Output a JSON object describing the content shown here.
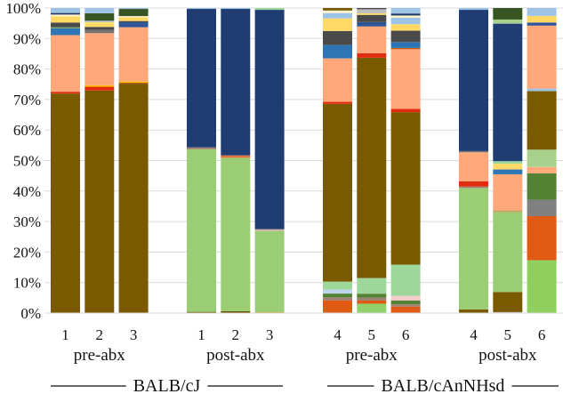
{
  "chart_data": {
    "type": "bar",
    "stacked": true,
    "normalized": true,
    "title": "",
    "xlabel": "",
    "ylabel": "",
    "ylim": [
      0,
      100
    ],
    "yticks": [
      "0%",
      "10%",
      "20%",
      "30%",
      "40%",
      "50%",
      "60%",
      "70%",
      "80%",
      "90%",
      "100%"
    ],
    "grid": true,
    "legend": "none",
    "strains": [
      {
        "label": "BALB/cJ",
        "groups": [
          0,
          1
        ]
      },
      {
        "label": "BALB/cAnNHsd",
        "groups": [
          2,
          3
        ]
      }
    ],
    "groups": [
      {
        "label": "pre-abx",
        "bars": [
          {
            "label": "1",
            "segments": [
              {
                "color": "#7a5a00",
                "value": 70.5
              },
              {
                "color": "#e02b0f",
                "value": 0.6
              },
              {
                "color": "#ffa87a",
                "value": 18.2
              },
              {
                "color": "#2e75b6",
                "value": 2.2
              },
              {
                "color": "#70ad47",
                "value": 0.3
              },
              {
                "color": "#4a4a4a",
                "value": 1.5
              },
              {
                "color": "#ffd966",
                "value": 2.0
              },
              {
                "color": "#fff2cc",
                "value": 0.6
              },
              {
                "color": "#1f3864",
                "value": 0.5
              },
              {
                "color": "#9dc3e6",
                "value": 1.6
              }
            ]
          },
          {
            "label": "2",
            "segments": [
              {
                "color": "#7a5a00",
                "value": 71.8
              },
              {
                "color": "#e02b0f",
                "value": 1.2
              },
              {
                "color": "#ffc000",
                "value": 0.5
              },
              {
                "color": "#ffa87a",
                "value": 16.8
              },
              {
                "color": "#767171",
                "value": 1.0
              },
              {
                "color": "#4a4a4a",
                "value": 1.0
              },
              {
                "color": "#ffd966",
                "value": 1.6
              },
              {
                "color": "#9dc3e6",
                "value": 0.4
              },
              {
                "color": "#375623",
                "value": 2.4
              },
              {
                "color": "#9dc3e6",
                "value": 1.7
              }
            ]
          },
          {
            "label": "3",
            "segments": [
              {
                "color": "#7a5a00",
                "value": 74.0
              },
              {
                "color": "#c55a11",
                "value": 0.3
              },
              {
                "color": "#ffc000",
                "value": 0.4
              },
              {
                "color": "#ffa87a",
                "value": 17.5
              },
              {
                "color": "#2f5597",
                "value": 1.6
              },
              {
                "color": "#4a4a4a",
                "value": 0.4
              },
              {
                "color": "#ffd966",
                "value": 1.2
              },
              {
                "color": "#fff2cc",
                "value": 0.4
              },
              {
                "color": "#375623",
                "value": 2.3
              },
              {
                "color": "#9dc3e6",
                "value": 0.3
              }
            ]
          }
        ]
      },
      {
        "label": "post-abx",
        "bars": [
          {
            "label": "1",
            "segments": [
              {
                "color": "#6b5000",
                "value": 0.4
              },
              {
                "color": "#9acd74",
                "value": 53.3
              },
              {
                "color": "#a08070",
                "value": 0.6
              },
              {
                "color": "#1f3d73",
                "value": 45.4
              },
              {
                "color": "#9dc3e6",
                "value": 0.3
              }
            ]
          },
          {
            "label": "2",
            "segments": [
              {
                "color": "#6b5000",
                "value": 0.6
              },
              {
                "color": "#9acd74",
                "value": 50.3
              },
              {
                "color": "#e2703a",
                "value": 0.8
              },
              {
                "color": "#1f3d73",
                "value": 48.0
              },
              {
                "color": "#9dc3e6",
                "value": 0.3
              }
            ]
          },
          {
            "label": "3",
            "segments": [
              {
                "color": "#c9a227",
                "value": 0.3
              },
              {
                "color": "#9acd74",
                "value": 26.6
              },
              {
                "color": "#c9b0a0",
                "value": 0.6
              },
              {
                "color": "#1f3d73",
                "value": 71.9
              },
              {
                "color": "#9dd79a",
                "value": 0.6
              }
            ]
          }
        ]
      },
      {
        "label": "pre-abx",
        "bars": [
          {
            "label": "4",
            "segments": [
              {
                "color": "#e05a14",
                "value": 4.0
              },
              {
                "color": "#a08070",
                "value": 1.0
              },
              {
                "color": "#548235",
                "value": 1.2
              },
              {
                "color": "#bdd7ee",
                "value": 1.3
              },
              {
                "color": "#9dd79a",
                "value": 2.5
              },
              {
                "color": "#7a5a00",
                "value": 56.5
              },
              {
                "color": "#e02b0f",
                "value": 0.7
              },
              {
                "color": "#ffa87a",
                "value": 13.8
              },
              {
                "color": "#2e75b6",
                "value": 4.2
              },
              {
                "color": "#4a4a4a",
                "value": 4.5
              },
              {
                "color": "#ffd966",
                "value": 4.0
              },
              {
                "color": "#9dc3e6",
                "value": 1.7
              },
              {
                "color": "#fff2cc",
                "value": 0.8
              },
              {
                "color": "#7a5a00",
                "value": 0.8
              }
            ]
          },
          {
            "label": "5",
            "segments": [
              {
                "color": "#8fd16a",
                "value": 3.0
              },
              {
                "color": "#e05a14",
                "value": 1.0
              },
              {
                "color": "#a08070",
                "value": 0.9
              },
              {
                "color": "#548235",
                "value": 1.3
              },
              {
                "color": "#9dd79a",
                "value": 5.0
              },
              {
                "color": "#7a5a00",
                "value": 70.5
              },
              {
                "color": "#e02b0f",
                "value": 1.4
              },
              {
                "color": "#ffa87a",
                "value": 8.6
              },
              {
                "color": "#2f5597",
                "value": 1.4
              },
              {
                "color": "#4a4a4a",
                "value": 2.3
              },
              {
                "color": "#ffd966",
                "value": 0.5
              },
              {
                "color": "#bfbfbf",
                "value": 1.3
              },
              {
                "color": "#4a4a4a",
                "value": 0.4
              }
            ]
          },
          {
            "label": "6",
            "segments": [
              {
                "color": "#e05a14",
                "value": 2.0
              },
              {
                "color": "#a08070",
                "value": 0.7
              },
              {
                "color": "#548235",
                "value": 1.2
              },
              {
                "color": "#f4cccc",
                "value": 1.4
              },
              {
                "color": "#9dd79a",
                "value": 9.6
              },
              {
                "color": "#7a5a00",
                "value": 47.0
              },
              {
                "color": "#e02b0f",
                "value": 1.0
              },
              {
                "color": "#ffa87a",
                "value": 18.4
              },
              {
                "color": "#c55a11",
                "value": 0.4
              },
              {
                "color": "#2e75b6",
                "value": 1.8
              },
              {
                "color": "#4a4a4a",
                "value": 3.5
              },
              {
                "color": "#ffd966",
                "value": 2.0
              },
              {
                "color": "#9dc3e6",
                "value": 2.0
              },
              {
                "color": "#fff2cc",
                "value": 0.7
              },
              {
                "color": "#1f3864",
                "value": 0.6
              },
              {
                "color": "#9dc3e6",
                "value": 1.7
              }
            ]
          }
        ]
      },
      {
        "label": "post-abx",
        "bars": [
          {
            "label": "4",
            "segments": [
              {
                "color": "#7a5a00",
                "value": 1.2
              },
              {
                "color": "#9acd74",
                "value": 39.8
              },
              {
                "color": "#a08070",
                "value": 0.5
              },
              {
                "color": "#e02b0f",
                "value": 1.7
              },
              {
                "color": "#ffa87a",
                "value": 9.5
              },
              {
                "color": "#767171",
                "value": 0.4
              },
              {
                "color": "#1f3d73",
                "value": 46.3
              },
              {
                "color": "#9dc3e6",
                "value": 0.6
              }
            ]
          },
          {
            "label": "5",
            "segments": [
              {
                "color": "#bfbfbf",
                "value": 0.3
              },
              {
                "color": "#7a5a00",
                "value": 6.3
              },
              {
                "color": "#9acd74",
                "value": 25.0
              },
              {
                "color": "#c9a060",
                "value": 0.6
              },
              {
                "color": "#ffa87a",
                "value": 11.2
              },
              {
                "color": "#2e75b6",
                "value": 1.5
              },
              {
                "color": "#ffd966",
                "value": 1.8
              },
              {
                "color": "#9dd79a",
                "value": 0.8
              },
              {
                "color": "#1f3d73",
                "value": 43.0
              },
              {
                "color": "#a9d18e",
                "value": 1.3
              },
              {
                "color": "#375623",
                "value": 3.6
              }
            ]
          },
          {
            "label": "6",
            "segments": [
              {
                "color": "#8fcf5e",
                "value": 16.8
              },
              {
                "color": "#e05a14",
                "value": 14.0
              },
              {
                "color": "#808080",
                "value": 5.2
              },
              {
                "color": "#548235",
                "value": 8.4
              },
              {
                "color": "#ffa87a",
                "value": 2.0
              },
              {
                "color": "#a9d18e",
                "value": 5.5
              },
              {
                "color": "#7a5a00",
                "value": 18.6
              },
              {
                "color": "#9dc3e6",
                "value": 0.8
              },
              {
                "color": "#ffa87a",
                "value": 20.0
              },
              {
                "color": "#2f5597",
                "value": 1.0
              },
              {
                "color": "#ffd966",
                "value": 2.1
              },
              {
                "color": "#9dc3e6",
                "value": 2.5
              }
            ]
          }
        ]
      }
    ]
  }
}
